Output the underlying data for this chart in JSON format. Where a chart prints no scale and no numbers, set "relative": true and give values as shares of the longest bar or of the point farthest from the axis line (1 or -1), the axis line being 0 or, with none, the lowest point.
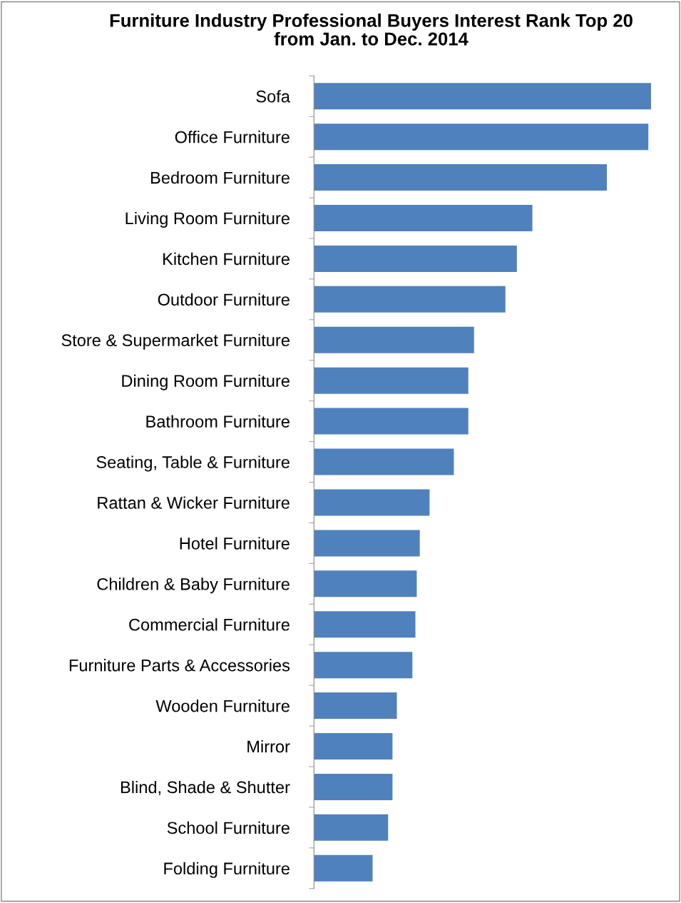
{
  "chart_data": {
    "type": "bar",
    "orientation": "horizontal",
    "relative": true,
    "title": "Furniture Industry Professional Buyers Interest Rank Top 20\nfrom Jan. to Dec. 2014",
    "categories": [
      "Sofa",
      "Office Furniture",
      "Bedroom Furniture",
      "Living Room Furniture",
      "Kitchen Furniture",
      "Outdoor Furniture",
      "Store & Supermarket Furniture",
      "Dining Room Furniture",
      "Bathroom Furniture",
      "Seating, Table & Furniture",
      "Rattan & Wicker Furniture",
      "Hotel Furniture",
      "Children & Baby Furniture",
      "Commercial Furniture",
      "Furniture Parts & Accessories",
      "Wooden Furniture",
      "Mirror",
      "Blind, Shade & Shutter",
      "School Furniture",
      "Folding Furniture"
    ],
    "values": [
      1,
      0.992,
      0.869,
      0.648,
      0.602,
      0.568,
      0.475,
      0.458,
      0.458,
      0.415,
      0.343,
      0.314,
      0.305,
      0.301,
      0.292,
      0.246,
      0.233,
      0.233,
      0.22,
      0.174
    ],
    "color": "#4f81bd",
    "tick_labels": "y",
    "grid": false
  }
}
